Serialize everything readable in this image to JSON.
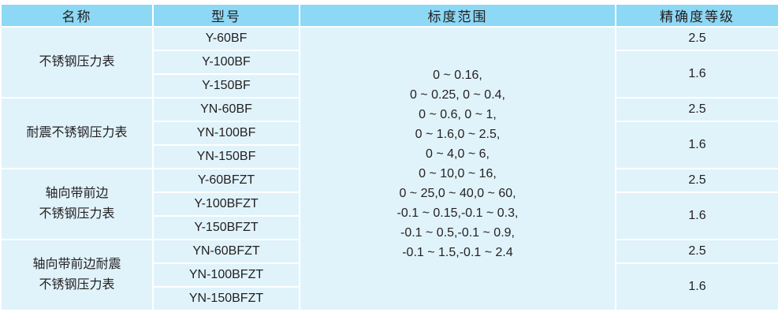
{
  "headers": [
    "名称",
    "型号",
    "标度范围",
    "精确度等级"
  ],
  "groups": [
    {
      "name_lines": [
        "不锈钢压力表"
      ],
      "models": [
        "Y-60BF",
        "Y-100BF",
        "Y-150BF"
      ],
      "accuracy": [
        "2.5",
        "1.6"
      ]
    },
    {
      "name_lines": [
        "耐震不锈钢压力表"
      ],
      "models": [
        "YN-60BF",
        "YN-100BF",
        "YN-150BF"
      ],
      "accuracy": [
        "2.5",
        "1.6"
      ]
    },
    {
      "name_lines": [
        "轴向带前边",
        "不锈钢压力表"
      ],
      "models": [
        "Y-60BFZT",
        "Y-100BFZT",
        "Y-150BFZT"
      ],
      "accuracy": [
        "2.5",
        "1.6"
      ]
    },
    {
      "name_lines": [
        "轴向带前边耐震",
        "不锈钢压力表"
      ],
      "models": [
        "YN-60BFZT",
        "YN-100BFZT",
        "YN-150BFZT"
      ],
      "accuracy": [
        "2.5",
        "1.6"
      ]
    }
  ],
  "range_lines": [
    "0 ~ 0.16,",
    "0 ~ 0.25, 0 ~ 0.4,",
    "0 ~ 0.6, 0 ~ 1,",
    "0 ~ 1.6,0 ~ 2.5,",
    "0 ~ 4,0 ~ 6,",
    "0 ~ 10,0 ~ 16,",
    "0 ~ 25,0 ~ 40,0 ~ 60,",
    "-0.1 ~ 0.15,-0.1 ~ 0.3,",
    "-0.1 ~ 0.5,-0.1 ~ 0.9,",
    "-0.1 ~ 1.5,-0.1 ~ 2.4"
  ],
  "colors": {
    "header_bg": "#8dd8f5",
    "body_bg": "#e0f3fb",
    "grid": "#ffffff"
  }
}
